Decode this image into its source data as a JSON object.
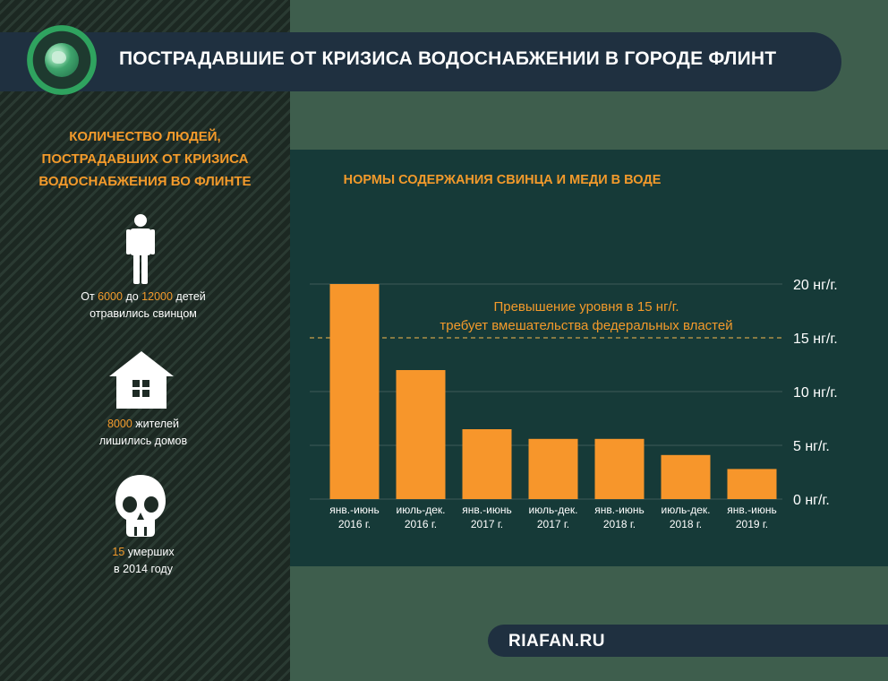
{
  "header": {
    "title": "ПОСТРАДАВШИЕ ОТ КРИЗИСА ВОДОСНАБЖЕНИИ В ГОРОДЕ ФЛИНТ"
  },
  "left": {
    "heading_lines": [
      "КОЛИЧЕСТВО ЛЮДЕЙ,",
      "ПОСТРАДАВШИХ ОТ КРИЗИСА",
      "ВОДОСНАБЖЕНИЯ ВО ФЛИНТЕ"
    ],
    "stats": [
      {
        "icon": "person-icon",
        "l1_a": "От ",
        "l1_b": "6000",
        "l1_c": " до ",
        "l1_d": "12000",
        "l1_e": " детей",
        "l2": "отравились свинцом"
      },
      {
        "icon": "house-icon",
        "l1_b": "8000",
        "l1_e": " жителей",
        "l2": "лишились домов"
      },
      {
        "icon": "skull-icon",
        "l1_b": "15",
        "l1_e": " умерших",
        "l2": "в 2014 году"
      }
    ]
  },
  "chart_data": {
    "type": "bar",
    "title": "НОРМЫ СОДЕРЖАНИЯ СВИНЦА И МЕДИ В ВОДЕ",
    "categories": [
      [
        "янв.-июнь",
        "2016 г."
      ],
      [
        "июль-дек.",
        "2016 г."
      ],
      [
        "янв.-июнь",
        "2017 г."
      ],
      [
        "июль-дек.",
        "2017 г."
      ],
      [
        "янв.-июнь",
        "2018 г."
      ],
      [
        "июль-дек.",
        "2018 г."
      ],
      [
        "янв.-июнь",
        "2019 г."
      ]
    ],
    "values": [
      20,
      12,
      6.5,
      5.6,
      5.6,
      4.1,
      2.8
    ],
    "ylim": [
      0,
      20
    ],
    "yticks": [
      0,
      5,
      10,
      15,
      20
    ],
    "ytick_labels": [
      "0 нг/г.",
      "5 нг/г.",
      "10 нг/г.",
      "15 нг/г.",
      "20 нг/г."
    ],
    "threshold": 15,
    "annotation_lines": [
      "Превышение уровня в 15 нг/г.",
      "требует вмешательства федеральных властей"
    ],
    "bar_color": "#f7962b",
    "grid_color": "#3d5a58",
    "threshold_color": "#c9a14a",
    "label_color": "#ffffff",
    "annotation_color": "#f39a2b"
  },
  "footer": {
    "site": "RIAFAN.RU"
  },
  "colors": {
    "accent": "#f39a2b",
    "header_bg": "#1f3040",
    "panel_bg": "#163a38",
    "page_bg": "#3e5e4d"
  }
}
